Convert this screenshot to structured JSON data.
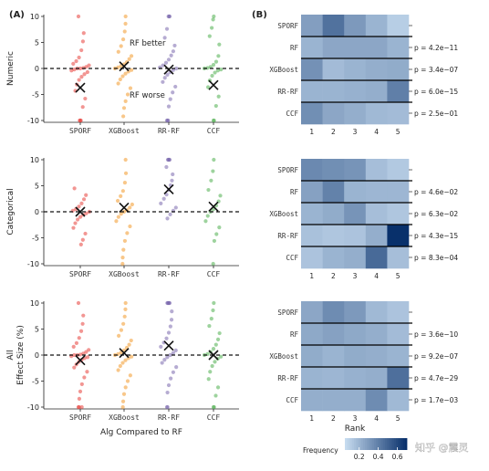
{
  "watermark": "知乎 @震灵",
  "chart_data": [
    {
      "type": "scatter",
      "panel": "(A)",
      "xlabel": "Alg Compared to RF",
      "ylabel": "Effect Size (%)",
      "ylim": [
        -10,
        10
      ],
      "yticks": [
        "-10",
        "-5",
        "0",
        "5",
        "10"
      ],
      "categories": [
        "SPORF",
        "XGBoost",
        "RR-RF",
        "CCF"
      ],
      "colors": [
        "#e8403a",
        "#f2992a",
        "#7a68ad",
        "#4fae4f"
      ],
      "reference_line": 0,
      "rows": [
        {
          "name": "Numeric",
          "annotations": [
            "RF better",
            "RF worse"
          ],
          "means": [
            -3.7,
            0.4,
            -0.2,
            -3.2
          ],
          "points": [
            [
              10,
              6.8,
              5.2,
              3.5,
              2.1,
              1.4,
              0.9,
              0.6,
              0.3,
              0.1,
              0,
              0,
              -0.2,
              -0.4,
              -0.7,
              -1.1,
              -1.6,
              -2.2,
              -3.1,
              -4.3,
              -5.8,
              -7.4,
              -10,
              -10,
              -10
            ],
            [
              10,
              8.6,
              7.1,
              5.6,
              4.3,
              3.2,
              2.4,
              1.8,
              1.2,
              0.8,
              0.5,
              0.2,
              0,
              -0.3,
              -0.6,
              -1,
              -1.5,
              -2.1,
              -2.9,
              -3.8,
              -5,
              -6.3,
              -7.6,
              -9.2
            ],
            [
              10,
              10,
              10,
              7.6,
              5.9,
              4.4,
              3.3,
              2.5,
              1.7,
              1.1,
              0.6,
              0.2,
              0,
              -0.3,
              -0.7,
              -1.2,
              -1.8,
              -2.6,
              -3.5,
              -4.6,
              -5.9,
              -7.3,
              -10,
              -10,
              -10
            ],
            [
              10,
              9.4,
              7.8,
              6.2,
              4.6,
              2.4,
              1.3,
              0.7,
              0.3,
              0.1,
              0,
              -0.2,
              -0.4,
              -0.8,
              -1.4,
              -2.3,
              -3.6,
              -5.4,
              -7.2,
              -10,
              -10
            ]
          ]
        },
        {
          "name": "Categorical",
          "annotations": [],
          "means": [
            0,
            0.8,
            4.3,
            1
          ],
          "points": [
            [
              4.5,
              3.2,
              2.4,
              1.6,
              1,
              0.5,
              0.2,
              0,
              -0.3,
              -0.6,
              -1,
              -1.5,
              -2.2,
              -3.1,
              -4.2,
              -5.4,
              -6.3
            ],
            [
              10,
              7.4,
              5.6,
              4,
              3,
              2.1,
              1.4,
              0.8,
              0.3,
              0,
              -0.4,
              -1,
              -1.8,
              -2.8,
              -4.1,
              -5.6,
              -7.3,
              -8.8,
              -10
            ],
            [
              10,
              10,
              10,
              10,
              8.6,
              7.2,
              6,
              5.1,
              4.2,
              3.3,
              2.5,
              1.6,
              0.8,
              0.2,
              -0.5,
              -1.3
            ],
            [
              10,
              7.8,
              6,
              4.2,
              3.1,
              2,
              1.2,
              0.5,
              0,
              -0.8,
              -1.8,
              -3,
              -4.3,
              -5.6,
              -10
            ]
          ]
        },
        {
          "name": "All",
          "annotations": [],
          "means": [
            -1,
            0.4,
            1.8,
            0
          ],
          "points": [
            [
              10,
              7.6,
              6,
              4.6,
              3.3,
              2.3,
              1.6,
              1,
              0.6,
              0.3,
              0.1,
              0,
              0,
              -0.2,
              -0.4,
              -0.6,
              -0.9,
              -1.3,
              -1.8,
              -2.4,
              -3.2,
              -4.3,
              -5.6,
              -7,
              -8.4,
              -10,
              -10,
              -10
            ],
            [
              10,
              8.8,
              7.4,
              6,
              4.8,
              3.7,
              2.8,
              2,
              1.4,
              0.9,
              0.5,
              0.2,
              0,
              -0.3,
              -0.6,
              -1,
              -1.5,
              -2.1,
              -2.9,
              -3.9,
              -5,
              -6.2,
              -7.5,
              -8.9,
              -10
            ],
            [
              10,
              10,
              10,
              10,
              10,
              8.4,
              6.8,
              5.5,
              4.3,
              3.2,
              2.4,
              1.6,
              0.9,
              0.4,
              0,
              -0.4,
              -0.9,
              -1.5,
              -2.3,
              -3.3,
              -4.5,
              -5.8,
              -7.2,
              -10,
              -10
            ],
            [
              10,
              8.6,
              7,
              5.6,
              4.2,
              3,
              2,
              1.2,
              0.6,
              0.2,
              0,
              -0.3,
              -0.7,
              -1.3,
              -2.1,
              -3.2,
              -4.6,
              -6.2,
              -7.8,
              -10,
              -10
            ]
          ]
        }
      ]
    },
    {
      "type": "heatmap",
      "panel": "(B)",
      "xlabel": "Rank",
      "x": [
        "1",
        "2",
        "3",
        "4",
        "5"
      ],
      "y": [
        "SPORF",
        "RF",
        "XGBoost",
        "RR-RF",
        "CCF"
      ],
      "legend_title": "Frequency",
      "legend_ticks": [
        "0.2",
        "0.4",
        "0.6"
      ],
      "color_range": [
        0.05,
        0.7
      ],
      "panels": [
        {
          "values": [
            [
              0.28,
              0.45,
              0.3,
              0.2,
              0.1
            ],
            [
              0.2,
              0.25,
              0.25,
              0.25,
              0.2
            ],
            [
              0.33,
              0.17,
              0.2,
              0.22,
              0.23
            ],
            [
              0.2,
              0.2,
              0.21,
              0.22,
              0.4
            ],
            [
              0.34,
              0.25,
              0.22,
              0.18,
              0.17
            ]
          ],
          "pvalues": [
            "",
            "p = 4.2e−11",
            "p = 3.4e−07",
            "p = 6.0e−15",
            "p = 2.5e−01"
          ]
        },
        {
          "values": [
            [
              0.36,
              0.34,
              0.32,
              0.16,
              0.12
            ],
            [
              0.27,
              0.39,
              0.2,
              0.19,
              0.19
            ],
            [
              0.2,
              0.23,
              0.32,
              0.16,
              0.13
            ],
            [
              0.15,
              0.13,
              0.14,
              0.22,
              0.7
            ],
            [
              0.14,
              0.2,
              0.22,
              0.48,
              0.16
            ]
          ],
          "pvalues": [
            "",
            "p = 4.6e−02",
            "p = 6.3e−02",
            "p = 4.3e−15",
            "p = 8.3e−04"
          ]
        },
        {
          "values": [
            [
              0.25,
              0.35,
              0.3,
              0.18,
              0.14
            ],
            [
              0.24,
              0.27,
              0.24,
              0.22,
              0.17
            ],
            [
              0.23,
              0.2,
              0.23,
              0.22,
              0.2
            ],
            [
              0.2,
              0.19,
              0.21,
              0.22,
              0.46
            ],
            [
              0.22,
              0.22,
              0.22,
              0.35,
              0.18
            ]
          ],
          "pvalues": [
            "",
            "p = 3.6e−10",
            "p = 9.2e−07",
            "p = 4.7e−29",
            "p = 1.7e−03"
          ]
        }
      ]
    }
  ]
}
